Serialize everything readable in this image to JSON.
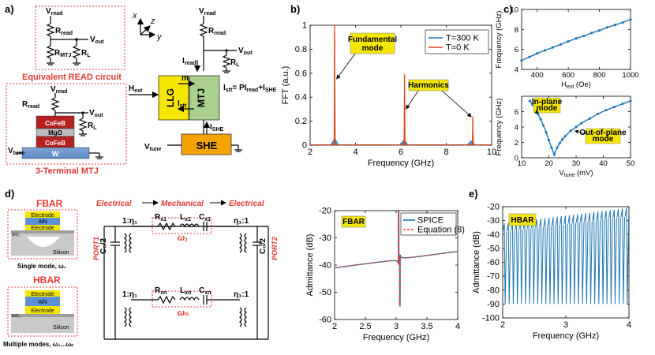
{
  "panel_labels": {
    "a": "a)",
    "b": "b)",
    "c": "c)",
    "d": "d)",
    "e": "e)"
  },
  "panel_a": {
    "read_circuit": {
      "vread": "V",
      "vread_sub": "read",
      "rread": "R",
      "rread_sub": "read",
      "rmtj": "R",
      "rmtj_sub": "MTJ",
      "rl": "R",
      "rl_sub": "L",
      "vout": "V",
      "vout_sub": "out",
      "caption": "Equivalent READ circuit"
    },
    "mtj_device": {
      "vread": "V",
      "vread_sub": "read",
      "rread": "R",
      "rread_sub": "read",
      "vout": "V",
      "vout_sub": "out",
      "rl": "R",
      "rl_sub": "L",
      "layers": [
        "CoFeB",
        "MgO",
        "CoFeB",
        "W"
      ],
      "vtune": "V",
      "vtune_sub": "tune",
      "caption": "3-Terminal MTJ"
    },
    "axes": {
      "x": "x",
      "y": "y",
      "z": "z"
    },
    "block": {
      "llg": "LLG",
      "mtj": "MTJ",
      "she": "SHE",
      "hext": "H",
      "hext_sub": "ext",
      "m": "m",
      "istt": "I",
      "istt_sub": "stt",
      "ishe": "I",
      "ishe_sub": "SHE",
      "iread": "I",
      "iread_sub": "read",
      "vread": "V",
      "vread_sub": "read",
      "rread": "R",
      "rread_sub": "read",
      "vout": "V",
      "vout_sub": "out",
      "rl": "R",
      "rl_sub": "L",
      "vtune": "V",
      "vtune_sub": "tune",
      "equation": "I",
      "equation_rest": "= PI",
      "equation_read": "read",
      "equation_plus": "+I",
      "equation_she": "SHE"
    }
  },
  "panel_d": {
    "fbar_title": "FBAR",
    "hbar_title": "HBAR",
    "layers": [
      "Electrode",
      "AlN",
      "Electrode"
    ],
    "sio2": "SiO₂",
    "silicon": "Silicon",
    "fbar_caption": "Single mode, ω₁",
    "hbar_caption": "Multiple modes, ω₁...ωₙ",
    "flow": [
      "Electrical",
      "Mechanical",
      "Electrical"
    ],
    "port1": "PORT1",
    "port2": "PORT2",
    "c0": "C₀/2",
    "row1": {
      "ratio_left": "1:η₁",
      "r": "R",
      "r_sub": "x1",
      "l": "L",
      "l_sub": "x1",
      "c": "C",
      "c_sub": "x1",
      "ratio_right": "η₁:1",
      "omega": "ω₁"
    },
    "rown": {
      "ratio_left": "1:η₁",
      "r": "R",
      "r_sub": "xn",
      "l": "L",
      "l_sub": "xn",
      "c": "C",
      "c_sub": "xn",
      "ratio_right": "η₁:1",
      "omega": "ωₙ"
    }
  },
  "chart_data": [
    {
      "panel": "b",
      "type": "line",
      "title": "",
      "xlabel": "Frequency (GHz)",
      "ylabel": "FFT (a.u.)",
      "xlim": [
        2,
        10
      ],
      "ylim": [
        0,
        1
      ],
      "xticks": [
        2,
        4,
        6,
        8,
        10
      ],
      "yticks": [
        0,
        0.2,
        0.4,
        0.6,
        0.8,
        1
      ],
      "series": [
        {
          "name": "T=300 K",
          "color": "#1f77b4",
          "peaks": [
            [
              3.08,
              0.05
            ],
            [
              6.14,
              0.04
            ],
            [
              9.1,
              0.035
            ]
          ]
        },
        {
          "name": "T=0 K",
          "color": "#d84315",
          "peaks": [
            [
              3.08,
              1.0
            ],
            [
              6.16,
              0.59
            ],
            [
              9.17,
              0.24
            ]
          ]
        }
      ],
      "legend": "top-right",
      "annotations": [
        "Fundamental mode",
        "Harmonics"
      ]
    },
    {
      "panel": "c-top",
      "type": "line",
      "title": "",
      "xlabel": "H",
      "xlabel_sub": "ext",
      "xlabel_unit": " (Oe)",
      "ylabel": "Frequency (GHz)",
      "xlim": [
        300,
        1000
      ],
      "ylim": [
        4,
        10
      ],
      "xticks": [
        400,
        600,
        800,
        1000
      ],
      "yticks": [
        4,
        6,
        8,
        10
      ],
      "series": [
        {
          "name": "",
          "color": "#1f77b4",
          "x": [
            300,
            350,
            400,
            450,
            500,
            550,
            600,
            650,
            700,
            750,
            800,
            850,
            900,
            950,
            1000
          ],
          "y": [
            4.9,
            5.25,
            5.6,
            5.9,
            6.2,
            6.5,
            6.8,
            7.1,
            7.35,
            7.65,
            7.9,
            8.2,
            8.45,
            8.7,
            9.0
          ]
        }
      ]
    },
    {
      "panel": "c-bottom",
      "type": "line",
      "title": "",
      "xlabel": "V",
      "xlabel_sub": "tune",
      "xlabel_unit": " (mV)",
      "ylabel": "Frequency (GHz)",
      "xlim": [
        10,
        50
      ],
      "ylim": [
        0,
        8
      ],
      "xticks": [
        10,
        20,
        30,
        40,
        50
      ],
      "yticks": [
        0,
        2,
        4,
        6
      ],
      "series": [
        {
          "name": "In-plane mode",
          "color": "#1f77b4",
          "x": [
            13,
            14,
            15,
            16,
            17,
            18,
            19,
            20,
            21,
            22
          ],
          "y": [
            7.4,
            6.9,
            6.3,
            5.7,
            5.0,
            4.2,
            3.3,
            2.3,
            1.3,
            0.4
          ]
        },
        {
          "name": "Out-of-plane mode",
          "color": "#1f77b4",
          "x": [
            22,
            23,
            24,
            25,
            26,
            28,
            30,
            32,
            35,
            38,
            41,
            44,
            47,
            50
          ],
          "y": [
            0.5,
            1.3,
            1.9,
            2.4,
            2.8,
            3.5,
            4.0,
            4.5,
            5.1,
            5.7,
            6.2,
            6.6,
            7.0,
            7.4
          ]
        }
      ]
    },
    {
      "panel": "d-plot",
      "type": "line",
      "title": "",
      "xlabel": "Frequency (GHz)",
      "ylabel": "Admittance (dB)",
      "xlim": [
        2,
        4
      ],
      "ylim": [
        -60,
        -20
      ],
      "xticks": [
        2,
        2.5,
        3,
        3.5,
        4
      ],
      "yticks": [
        -60,
        -50,
        -40,
        -30,
        -20
      ],
      "tag": "FBAR",
      "series": [
        {
          "name": "SPICE",
          "color": "#1f77b4",
          "style": "solid"
        },
        {
          "name": "Equation (8)",
          "color": "#e53935",
          "style": "dashed"
        }
      ],
      "model": {
        "resonance_ghz": 3.04,
        "anti_resonance_ghz": 3.06,
        "baseline_start_db": -41,
        "baseline_end_db": -35
      },
      "legend": "top-right"
    },
    {
      "panel": "e",
      "type": "line",
      "title": "",
      "xlabel": "Frequency (GHz)",
      "ylabel": "Admittance (dB)",
      "xlim": [
        2,
        4
      ],
      "ylim": [
        -100,
        -20
      ],
      "xticks": [
        2,
        3,
        4
      ],
      "yticks": [
        -100,
        -90,
        -80,
        -70,
        -60,
        -50,
        -40,
        -30,
        -20
      ],
      "tag": "HBAR",
      "series": [
        {
          "name": "",
          "color": "#1f77b4",
          "peaks_count": 31,
          "upper_db_start": -32,
          "upper_db_end": -21,
          "lower_db": -90
        }
      ]
    }
  ]
}
